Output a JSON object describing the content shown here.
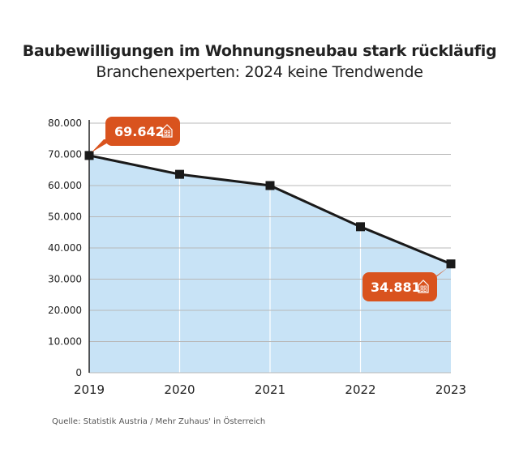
{
  "title": "Baubewilligungen im Wohnungsneubau stark rückläufig",
  "subtitle": "Branchenexperten: 2024 keine Trendwende",
  "source": "Quelle: Statistik Austria / Mehr Zuhaus' in Österreich",
  "chart_data": {
    "type": "area",
    "title": "Baubewilligungen im Wohnungsneubau stark rückläufig",
    "subtitle": "Branchenexperten: 2024 keine Trendwende",
    "categories": [
      "2019",
      "2020",
      "2021",
      "2022",
      "2023"
    ],
    "values": [
      69642,
      63600,
      60000,
      46800,
      34881
    ],
    "ylim": [
      0,
      80000
    ],
    "yticks": [
      0,
      10000,
      20000,
      30000,
      40000,
      50000,
      60000,
      70000,
      80000
    ],
    "ytick_labels": [
      "0",
      "10.000",
      "20.000",
      "30.000",
      "40.000",
      "50.000",
      "60.000",
      "70.000",
      "80.000"
    ],
    "grid": true,
    "annotations": [
      {
        "category": "2019",
        "label": "69.642",
        "icon": "house-icon"
      },
      {
        "category": "2023",
        "label": "34.881",
        "icon": "house-icon"
      }
    ],
    "colors": {
      "fill": "#c8e3f6",
      "line": "#1a1a1a",
      "callout": "#d9531e",
      "grid": "#b8b8b8"
    }
  }
}
